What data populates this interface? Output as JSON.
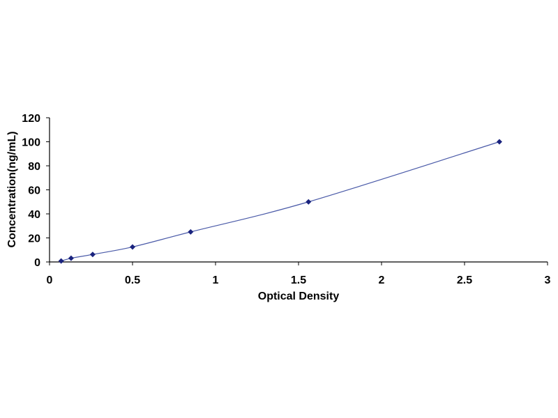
{
  "chart_data": {
    "type": "scatter",
    "title": "",
    "xlabel": "Optical Density",
    "ylabel": "Concentration(ng/mL)",
    "xlim": [
      0,
      3
    ],
    "ylim": [
      0,
      120
    ],
    "x_ticks": [
      "0",
      "0.5",
      "1",
      "1.5",
      "2",
      "2.5",
      "3"
    ],
    "y_ticks": [
      "0",
      "20",
      "40",
      "60",
      "80",
      "100",
      "120"
    ],
    "x_tick_values": [
      0,
      0.5,
      1,
      1.5,
      2,
      2.5,
      3
    ],
    "y_tick_values": [
      0,
      20,
      40,
      60,
      80,
      100,
      120
    ],
    "grid": false,
    "legend": "none",
    "series": [
      {
        "x": [
          0.07,
          0.13,
          0.26,
          0.5,
          0.85,
          1.56,
          2.71
        ],
        "y": [
          0.78,
          3.1,
          6.25,
          12.5,
          25,
          50,
          100
        ],
        "trendline": "smooth curve through points"
      }
    ],
    "colors": {
      "line": "#4a5aa8",
      "marker": "#1a237e",
      "axis": "#000000"
    }
  }
}
